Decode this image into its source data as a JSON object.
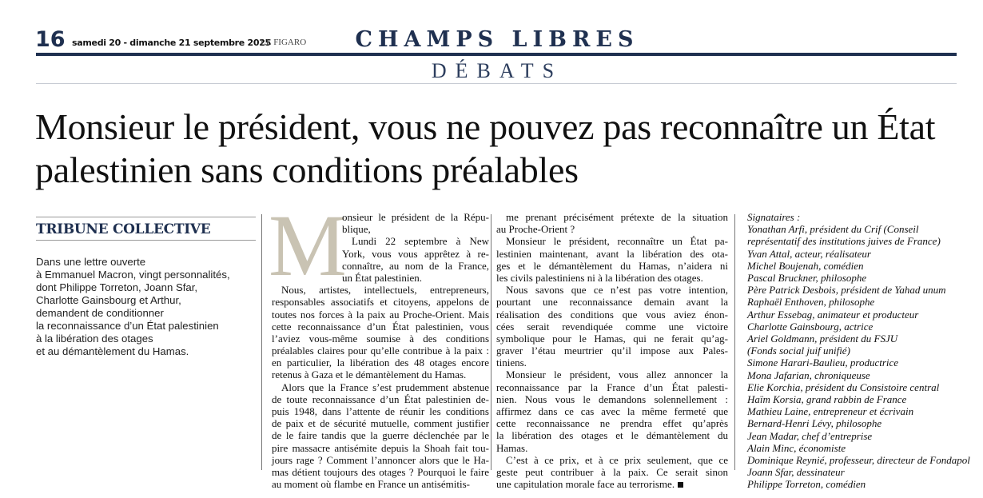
{
  "header": {
    "page_number": "16",
    "date": "samedi 20 - dimanche 21 septembre 2025",
    "publication": "LE FIGARO",
    "section": "CHAMPS LIBRES",
    "subsection": "DÉBATS",
    "brand_color": "#1f3050"
  },
  "article": {
    "headline": "Monsieur le président, vous ne pouvez pas reconnaître un État palestinien sans conditions préalables",
    "kicker": "TRIBUNE COLLECTIVE",
    "chapo_lines": [
      "Dans une lettre ouverte",
      "à Emmanuel Macron, vingt personnalités,",
      "dont Philippe Torreton, Joann Sfar,",
      "Charlotte Gainsbourg et Arthur,",
      "demandent de conditionner",
      "la reconnaissance d’un État palestinien",
      "à la libération des otages",
      "et au démantèlement du Hamas."
    ],
    "drop_cap": "M",
    "column1": [
      [
        "onsieur le président de la Répu-",
        "blique,"
      ],
      [
        "Lundi 22 septembre à New",
        "York, vous vous apprêtez à re-",
        "connaître, au nom de la France,",
        "un État palestinien."
      ],
      [
        "Nous, artistes, intellectuels, entrepreneurs,",
        "responsables associatifs et citoyens, appelons de",
        "toutes nos forces à la paix au Proche-Orient. Mais",
        "cette reconnaissance d’un État palestinien, vous",
        "l’aviez vous-même soumise à des conditions",
        "préalables claires pour qu’elle contribue à la paix :",
        "en particulier, la libération des 48 otages encore",
        "retenus à Gaza et le démantèlement du Hamas."
      ],
      [
        "Alors que la France s’est prudemment abstenue",
        "de toute reconnaissance d’un État palestinien de-",
        "puis 1948, dans l’attente de réunir les conditions",
        "de paix et de sécurité mutuelle, comment justifier",
        "de le faire tandis que la guerre déclenchée par le",
        "pire massacre antisémite depuis la Shoah fait tou-",
        "jours rage ? Comment l’annoncer alors que le Ha-",
        "mas détient toujours des otages ? Pourquoi le faire",
        "au moment où flambe en France un antisémitis-"
      ]
    ],
    "column2": [
      [
        "me prenant précisément prétexte de la situation",
        "au Proche-Orient ?"
      ],
      [
        "Monsieur le président, reconnaître un État pa-",
        "lestinien maintenant, avant la libération des ota-",
        "ges et le démantèlement du Hamas, n’aidera ni",
        "les civils palestiniens ni à la libération des otages."
      ],
      [
        "Nous savons que ce n’est pas votre intention,",
        "pourtant une reconnaissance demain avant la",
        "réalisation des conditions que vous aviez énon-",
        "cées serait revendiquée comme une victoire",
        "symbolique pour le Hamas, qui ne ferait qu’ag-",
        "graver l’étau meurtrier qu’il impose aux Pales-",
        "tiniens."
      ],
      [
        "Monsieur le président, vous allez annoncer la",
        "reconnaissance par la France d’un État palesti-",
        "nien. Nous vous le demandons solennellement :",
        "affirmez dans ce cas avec la même fermeté que",
        "cette reconnaissance ne prendra effet qu’après",
        "la libération des otages et le démantèlement du",
        "Hamas."
      ],
      [
        "C’est à ce prix, et à ce prix seulement, que ce",
        "geste peut contribuer à la paix. Ce serait sinon",
        "une capitulation morale face au terrorisme."
      ]
    ],
    "signatories_label": "Signataires :",
    "signatories": [
      "Yonathan Arfi, président du Crif (Conseil",
      "représentatif des institutions juives de France)",
      "Yvan Attal, acteur, réalisateur",
      "Michel Boujenah, comédien",
      "Pascal Bruckner, philosophe",
      "Père Patrick Desbois, président de Yahad unum",
      "Raphaël Enthoven, philosophe",
      "Arthur Essebag, animateur et producteur",
      "Charlotte Gainsbourg, actrice",
      "Ariel Goldmann, président du FSJU",
      "(Fonds social juif unifié)",
      "Simone Harari-Baulieu, productrice",
      "Mona Jafarian, chroniqueuse",
      "Elie Korchia, président du Consistoire central",
      "Haïm Korsia, grand rabbin de France",
      "Mathieu Laine, entrepreneur et écrivain",
      "Bernard-Henri Lévy, philosophe",
      "Jean Madar, chef d’entreprise",
      "Alain Minc, économiste",
      "Dominique Reynié, professeur, directeur de Fondapol",
      "Joann Sfar, dessinateur",
      "Philippe Torreton, comédien"
    ]
  }
}
